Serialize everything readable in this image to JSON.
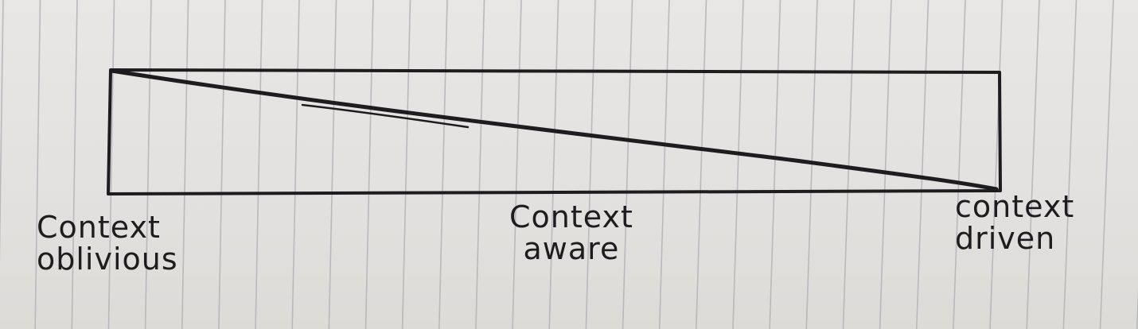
{
  "diagram": {
    "labels": {
      "left": {
        "line1": "Context",
        "line2": "oblivious"
      },
      "middle": {
        "line1": "Context",
        "line2": "aware"
      },
      "right": {
        "line1": "context",
        "line2": "driven"
      }
    },
    "colors": {
      "paper": "#e6e4e2",
      "rule_line": "#b9b8bd",
      "ink": "#1d1d1f"
    }
  }
}
